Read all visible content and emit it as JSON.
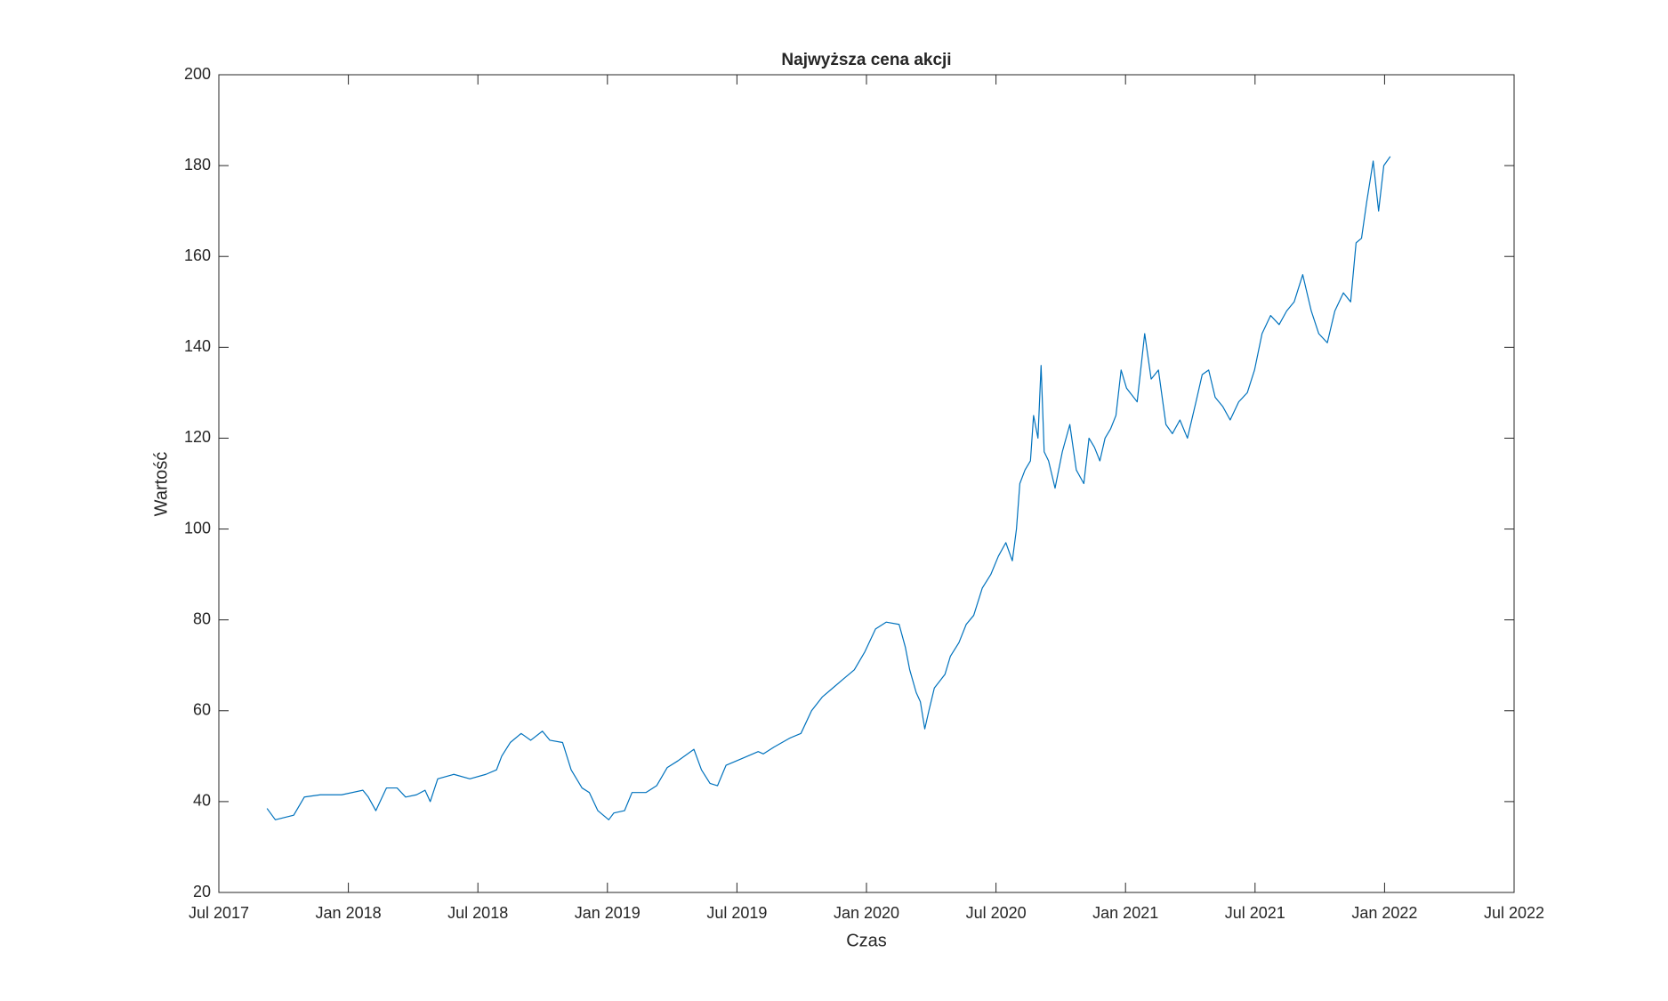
{
  "chart_data": {
    "type": "line",
    "title": "Najwyższa cena akcji",
    "x_label": "Czas",
    "y_label": "Wartość",
    "x": [
      2017.686,
      2017.718,
      2017.789,
      2017.83,
      2017.892,
      2017.974,
      2018.056,
      2018.077,
      2018.106,
      2018.147,
      2018.188,
      2018.221,
      2018.263,
      2018.296,
      2018.316,
      2018.345,
      2018.407,
      2018.469,
      2018.531,
      2018.572,
      2018.592,
      2018.625,
      2018.667,
      2018.704,
      2018.749,
      2018.778,
      2018.827,
      2018.86,
      2018.902,
      2018.93,
      2018.963,
      2019.005,
      2019.025,
      2019.066,
      2019.095,
      2019.149,
      2019.19,
      2019.231,
      2019.273,
      2019.334,
      2019.363,
      2019.396,
      2019.425,
      2019.458,
      2019.52,
      2019.582,
      2019.602,
      2019.643,
      2019.705,
      2019.747,
      2019.788,
      2019.829,
      2019.87,
      2019.911,
      2019.953,
      2019.994,
      2020.035,
      2020.076,
      2020.126,
      2020.15,
      2020.167,
      2020.192,
      2020.208,
      2020.225,
      2020.241,
      2020.262,
      2020.303,
      2020.324,
      2020.357,
      2020.385,
      2020.414,
      2020.447,
      2020.48,
      2020.509,
      2020.538,
      2020.563,
      2020.579,
      2020.592,
      2020.612,
      2020.633,
      2020.645,
      2020.662,
      2020.674,
      2020.686,
      2020.703,
      2020.728,
      2020.756,
      2020.785,
      2020.81,
      2020.839,
      2020.859,
      2020.88,
      2020.901,
      2020.921,
      2020.942,
      2020.963,
      2020.983,
      2021.004,
      2021.045,
      2021.074,
      2021.099,
      2021.127,
      2021.156,
      2021.181,
      2021.21,
      2021.239,
      2021.272,
      2021.296,
      2021.321,
      2021.346,
      2021.375,
      2021.404,
      2021.437,
      2021.47,
      2021.498,
      2021.527,
      2021.56,
      2021.593,
      2021.622,
      2021.651,
      2021.684,
      2021.717,
      2021.746,
      2021.779,
      2021.808,
      2021.841,
      2021.869,
      2021.89,
      2021.911,
      2021.931,
      2021.956,
      2021.977,
      2021.997,
      2022.022
    ],
    "series": [
      {
        "name": "Najwyższa cena",
        "color": "#0072bd",
        "values": [
          38.5,
          36,
          37,
          41,
          41.5,
          41.5,
          42.5,
          41,
          38,
          43,
          43,
          41,
          41.5,
          42.5,
          40,
          45,
          46,
          45,
          46,
          47,
          50,
          53,
          55,
          53.5,
          55.5,
          53.5,
          53,
          47,
          43,
          42,
          38,
          36,
          37.5,
          38,
          42,
          42,
          43.5,
          47.5,
          49,
          51.5,
          47,
          44,
          43.5,
          48,
          49.5,
          51,
          50.5,
          52,
          54,
          55,
          60,
          63,
          65,
          67,
          69,
          73,
          78,
          79.5,
          79,
          74,
          69,
          64,
          62,
          56,
          60,
          65,
          68,
          72,
          75,
          79,
          81,
          87,
          90,
          94,
          97,
          93,
          100,
          110,
          113,
          115,
          125,
          120,
          136,
          117,
          115,
          109,
          117,
          123,
          113,
          110,
          120,
          118,
          115,
          120,
          122,
          125,
          135,
          131,
          128,
          143,
          133,
          135,
          123,
          121,
          124,
          120,
          128,
          134,
          135,
          129,
          127,
          124,
          128,
          130,
          135,
          143,
          147,
          145,
          148,
          150,
          156,
          148,
          143,
          141,
          148,
          152,
          150,
          163,
          164,
          172,
          181,
          170,
          180,
          182
        ]
      }
    ],
    "xlim": [
      2017.5,
      2022.5
    ],
    "xticks": [
      {
        "value": 2017.5,
        "label": "Jul 2017"
      },
      {
        "value": 2018,
        "label": "Jan 2018"
      },
      {
        "value": 2018.5,
        "label": "Jul 2018"
      },
      {
        "value": 2019,
        "label": "Jan 2019"
      },
      {
        "value": 2019.5,
        "label": "Jul 2019"
      },
      {
        "value": 2020,
        "label": "Jan 2020"
      },
      {
        "value": 2020.5,
        "label": "Jul 2020"
      },
      {
        "value": 2021,
        "label": "Jan 2021"
      },
      {
        "value": 2021.5,
        "label": "Jul 2021"
      },
      {
        "value": 2022,
        "label": "Jan 2022"
      },
      {
        "value": 2022.5,
        "label": "Jul 2022"
      }
    ],
    "ylim": [
      20,
      200
    ],
    "yticks": [
      20,
      40,
      60,
      80,
      100,
      120,
      140,
      160,
      180,
      200
    ],
    "grid": false
  }
}
